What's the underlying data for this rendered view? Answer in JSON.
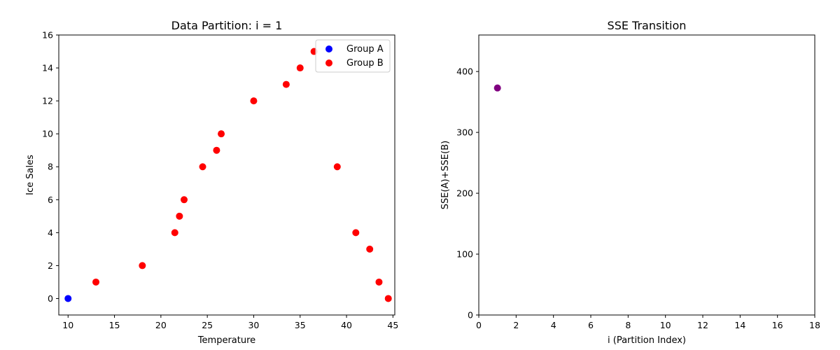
{
  "chart_data": [
    {
      "type": "scatter",
      "title": "Data Partition: i = 1",
      "xlabel": "Temperature",
      "ylabel": "Ice Sales",
      "xlim": [
        9.0,
        45.2
      ],
      "ylim": [
        -1,
        16
      ],
      "xticks": [
        10,
        15,
        20,
        25,
        30,
        35,
        40,
        45
      ],
      "yticks": [
        0,
        2,
        4,
        6,
        8,
        10,
        12,
        14,
        16
      ],
      "grid": false,
      "legend_position": "upper-right",
      "series": [
        {
          "name": "Group A",
          "color": "#0000ff",
          "x": [
            10
          ],
          "y": [
            0
          ]
        },
        {
          "name": "Group B",
          "color": "#ff0000",
          "x": [
            13,
            18,
            21.5,
            22,
            22.5,
            24.5,
            26,
            26.5,
            30,
            33.5,
            35,
            36.5,
            39,
            41,
            42.5,
            43.5,
            44.5
          ],
          "y": [
            1,
            2,
            4,
            5,
            6,
            8,
            9,
            10,
            12,
            13,
            14,
            15,
            8,
            4,
            3,
            1,
            0
          ]
        }
      ]
    },
    {
      "type": "scatter",
      "title": "SSE Transition",
      "xlabel": "i (Partition Index)",
      "ylabel": "SSE(A)+SSE(B)",
      "xlim": [
        0,
        18
      ],
      "ylim": [
        0,
        460
      ],
      "xticks": [
        0,
        2,
        4,
        6,
        8,
        10,
        12,
        14,
        16,
        18
      ],
      "yticks": [
        0,
        100,
        200,
        300,
        400
      ],
      "grid": false,
      "series": [
        {
          "color": "#800080",
          "x": [
            1
          ],
          "y": [
            373
          ]
        }
      ]
    }
  ]
}
